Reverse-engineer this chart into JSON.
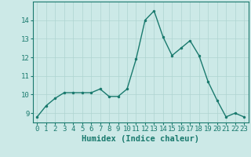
{
  "xlabel": "Humidex (Indice chaleur)",
  "x": [
    0,
    1,
    2,
    3,
    4,
    5,
    6,
    7,
    8,
    9,
    10,
    11,
    12,
    13,
    14,
    15,
    16,
    17,
    18,
    19,
    20,
    21,
    22,
    23
  ],
  "y": [
    8.8,
    9.4,
    9.8,
    10.1,
    10.1,
    10.1,
    10.1,
    10.3,
    9.9,
    9.9,
    10.3,
    11.9,
    14.0,
    14.5,
    13.1,
    12.1,
    12.5,
    12.9,
    12.1,
    10.7,
    9.7,
    8.8,
    9.0,
    8.8
  ],
  "line_color": "#1a7a6e",
  "marker_color": "#1a7a6e",
  "bg_color": "#cce9e7",
  "grid_color": "#aed4d1",
  "ylim": [
    8.5,
    15.0
  ],
  "yticks": [
    9,
    10,
    11,
    12,
    13,
    14
  ],
  "xticks": [
    0,
    1,
    2,
    3,
    4,
    5,
    6,
    7,
    8,
    9,
    10,
    11,
    12,
    13,
    14,
    15,
    16,
    17,
    18,
    19,
    20,
    21,
    22,
    23
  ],
  "tick_fontsize": 6.5,
  "xlabel_fontsize": 7.5,
  "marker_size": 3,
  "line_width": 1.0
}
